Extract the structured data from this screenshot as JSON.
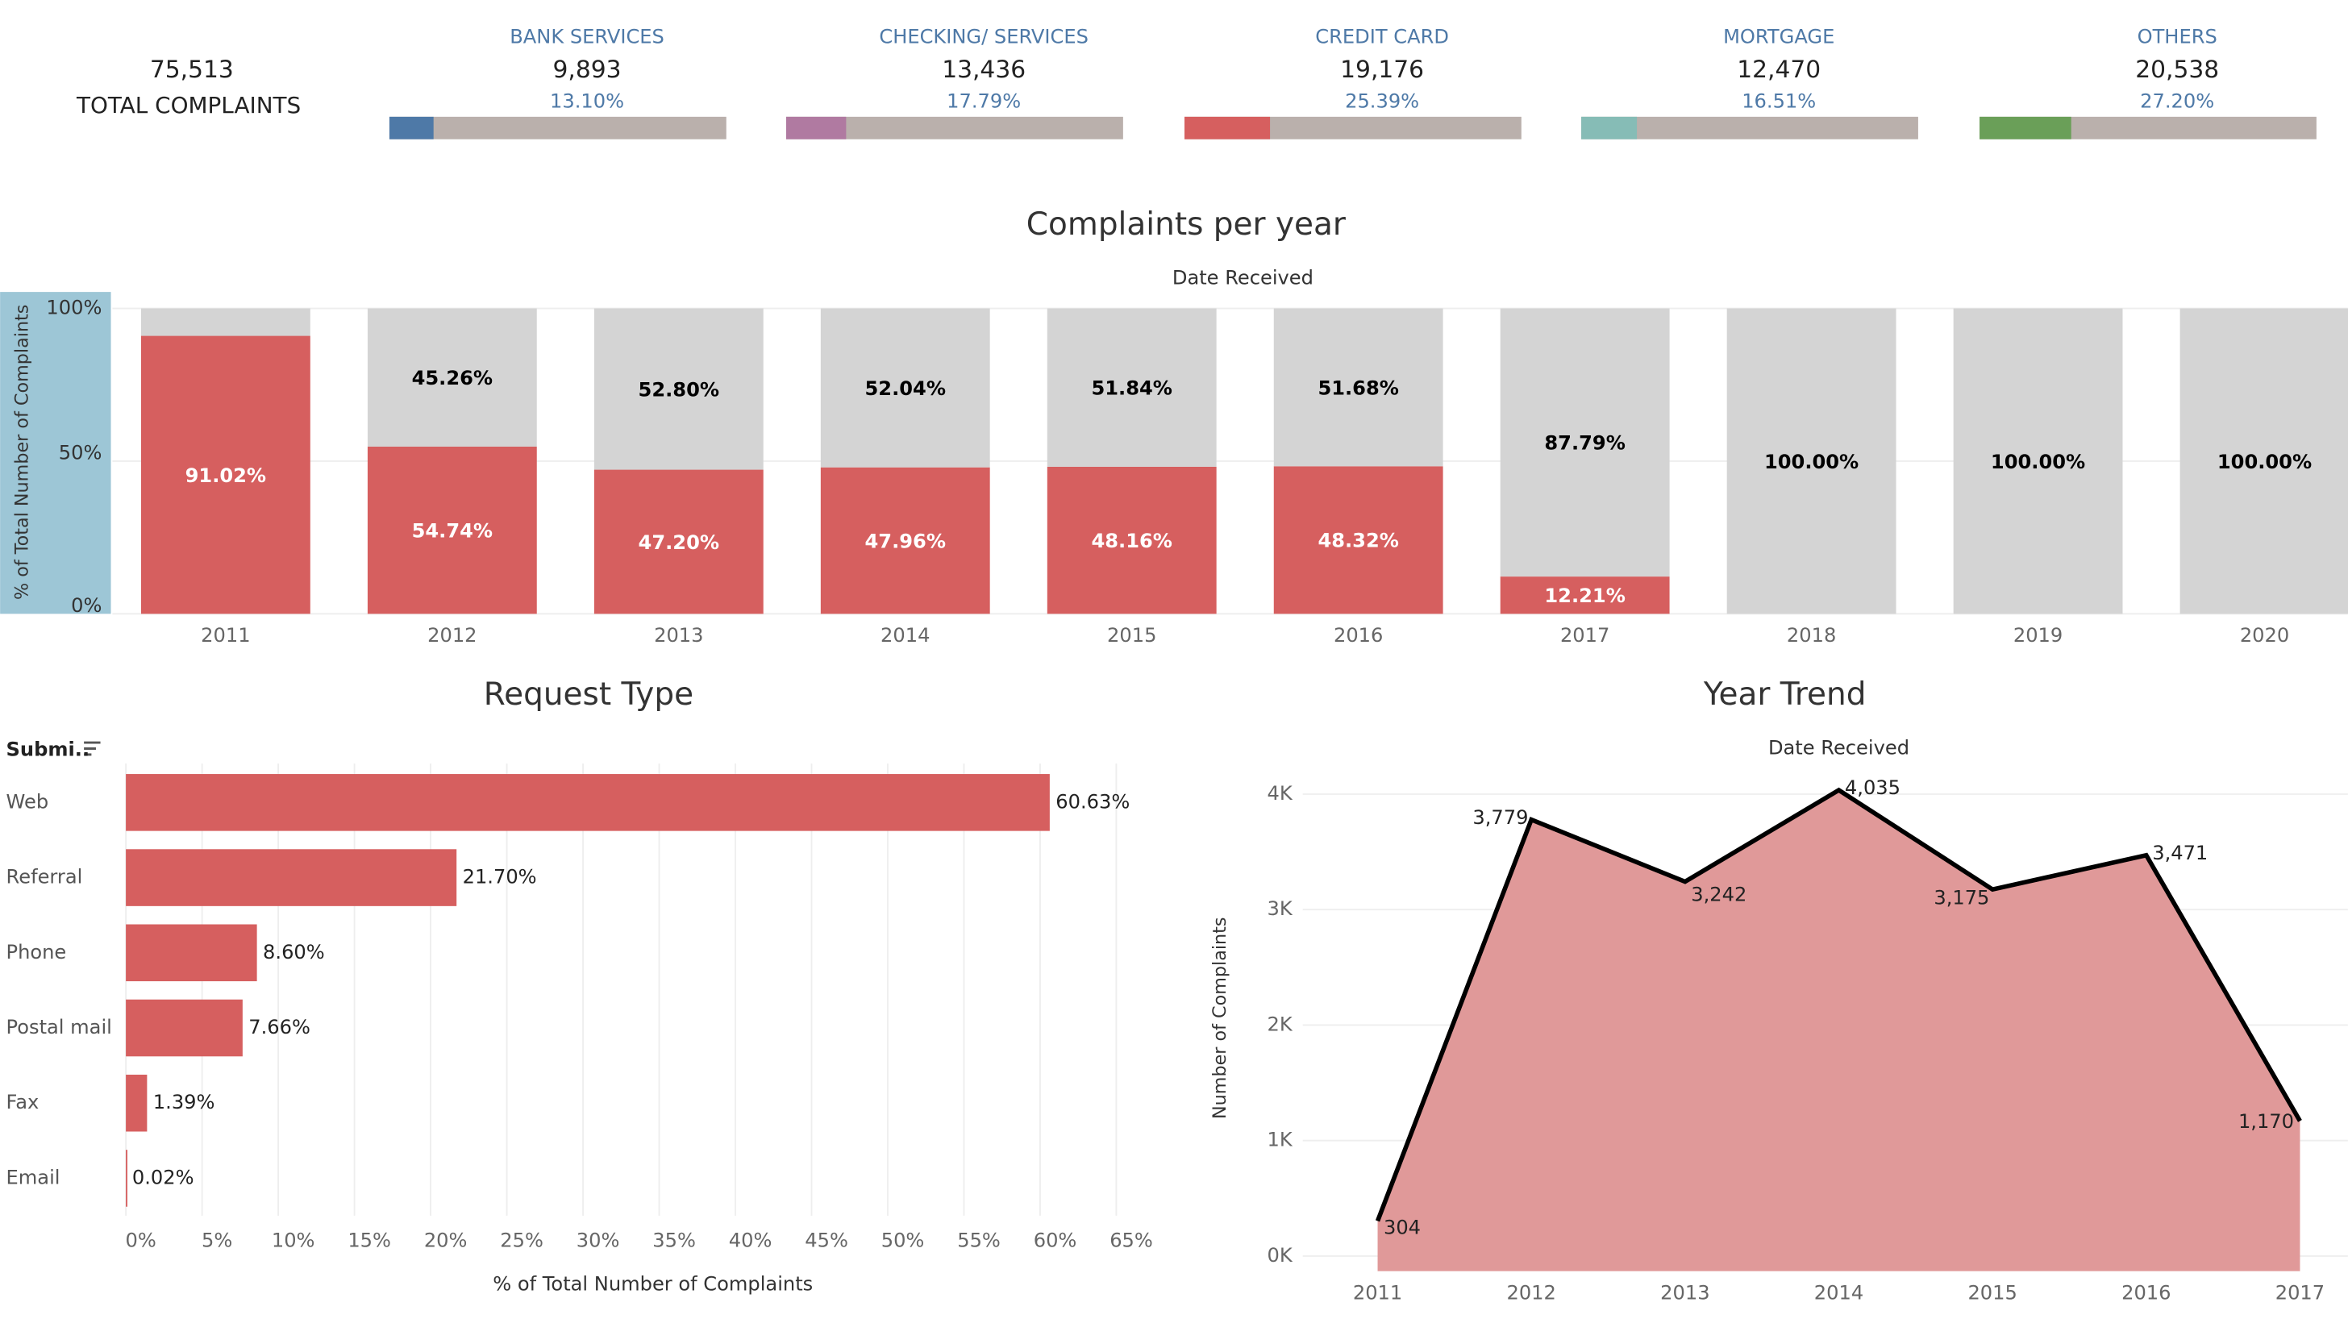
{
  "kpis": {
    "total": {
      "value": "75,513",
      "label": "TOTAL COMPLAINTS"
    },
    "track_color": "#bab0ac",
    "items": [
      {
        "name": "BANK SERVICES",
        "count": "9,893",
        "share": 13.1,
        "share_label": "13.10%",
        "color": "#4e79a7"
      },
      {
        "name": "CHECKING/ SERVICES",
        "count": "13,436",
        "share": 17.79,
        "share_label": "17.79%",
        "color": "#b07aa1"
      },
      {
        "name": "CREDIT CARD",
        "count": "19,176",
        "share": 25.39,
        "share_label": "25.39%",
        "color": "#d65f5f"
      },
      {
        "name": "MORTGAGE",
        "count": "12,470",
        "share": 16.51,
        "share_label": "16.51%",
        "color": "#86bcb6"
      },
      {
        "name": "OTHERS",
        "count": "20,538",
        "share": 27.2,
        "share_label": "27.20%",
        "color": "#6a9f58"
      }
    ]
  },
  "chart_data": [
    {
      "type": "bar",
      "stacked": true,
      "title": "Complaints per year",
      "x_label": "Date Received",
      "y_label": "% of Total Number of Complaints",
      "categories": [
        "2011",
        "2012",
        "2013",
        "2014",
        "2015",
        "2016",
        "2017",
        "2018",
        "2019",
        "2020"
      ],
      "series": [
        {
          "color": "#d65f5f",
          "label_color": "#ffffff",
          "values": [
            91.02,
            54.74,
            47.2,
            47.96,
            48.16,
            48.32,
            12.21,
            null,
            null,
            null
          ],
          "value_labels": [
            "91.02%",
            "54.74%",
            "47.20%",
            "47.96%",
            "48.16%",
            "48.32%",
            "12.21%",
            null,
            null,
            null
          ]
        },
        {
          "color": "#d4d4d4",
          "label_color": "#000000",
          "values": [
            8.98,
            45.26,
            52.8,
            52.04,
            51.84,
            51.68,
            87.79,
            100,
            100,
            100
          ],
          "value_labels": [
            null,
            "45.26%",
            "52.80%",
            "52.04%",
            "51.84%",
            "51.68%",
            "87.79%",
            "100.00%",
            "100.00%",
            "100.00%"
          ]
        }
      ],
      "ylim": [
        0,
        100
      ],
      "yticks": [
        {
          "value": 0,
          "label": "0%"
        },
        {
          "value": 50,
          "label": "50%"
        },
        {
          "value": 100,
          "label": "100%"
        }
      ],
      "grid": true
    },
    {
      "type": "bar",
      "orientation": "horizontal",
      "title": "Request Type",
      "category_label": "Submi..",
      "x_label": "% of Total Number of Complaints",
      "categories": [
        "Web",
        "Referral",
        "Phone",
        "Postal mail",
        "Fax",
        "Email"
      ],
      "values": [
        60.63,
        21.7,
        8.6,
        7.66,
        1.39,
        0.02
      ],
      "value_labels": [
        "60.63%",
        "21.70%",
        "8.60%",
        "7.66%",
        "1.39%",
        "0.02%"
      ],
      "color": "#d65f5f",
      "xlim": [
        0,
        68
      ],
      "xticks": [
        {
          "value": 0,
          "label": "0%"
        },
        {
          "value": 5,
          "label": "5%"
        },
        {
          "value": 10,
          "label": "10%"
        },
        {
          "value": 15,
          "label": "15%"
        },
        {
          "value": 20,
          "label": "20%"
        },
        {
          "value": 25,
          "label": "25%"
        },
        {
          "value": 30,
          "label": "30%"
        },
        {
          "value": 35,
          "label": "35%"
        },
        {
          "value": 40,
          "label": "40%"
        },
        {
          "value": 45,
          "label": "45%"
        },
        {
          "value": 50,
          "label": "50%"
        },
        {
          "value": 55,
          "label": "55%"
        },
        {
          "value": 60,
          "label": "60%"
        },
        {
          "value": 65,
          "label": "65%"
        }
      ],
      "grid": true
    },
    {
      "type": "area",
      "title": "Year Trend",
      "x_label": "Date Received",
      "y_label": "Number of Complaints",
      "x": [
        2011,
        2012,
        2013,
        2014,
        2015,
        2016,
        2017
      ],
      "values": [
        304,
        3779,
        3242,
        4035,
        3175,
        3471,
        1170
      ],
      "value_labels": [
        "304",
        "3,779",
        "3,242",
        "4,035",
        "3,175",
        "3,471",
        "1,170"
      ],
      "fill_color": "#e09999",
      "line_color": "#000000",
      "xlim": [
        2011,
        2017
      ],
      "xticks": [
        2011,
        2012,
        2013,
        2014,
        2015,
        2016,
        2017
      ],
      "ylim": [
        -130,
        4200
      ],
      "yticks": [
        {
          "value": 0,
          "label": "0K"
        },
        {
          "value": 1000,
          "label": "1K"
        },
        {
          "value": 2000,
          "label": "2K"
        },
        {
          "value": 3000,
          "label": "3K"
        },
        {
          "value": 4000,
          "label": "4K"
        }
      ],
      "grid": true
    }
  ]
}
